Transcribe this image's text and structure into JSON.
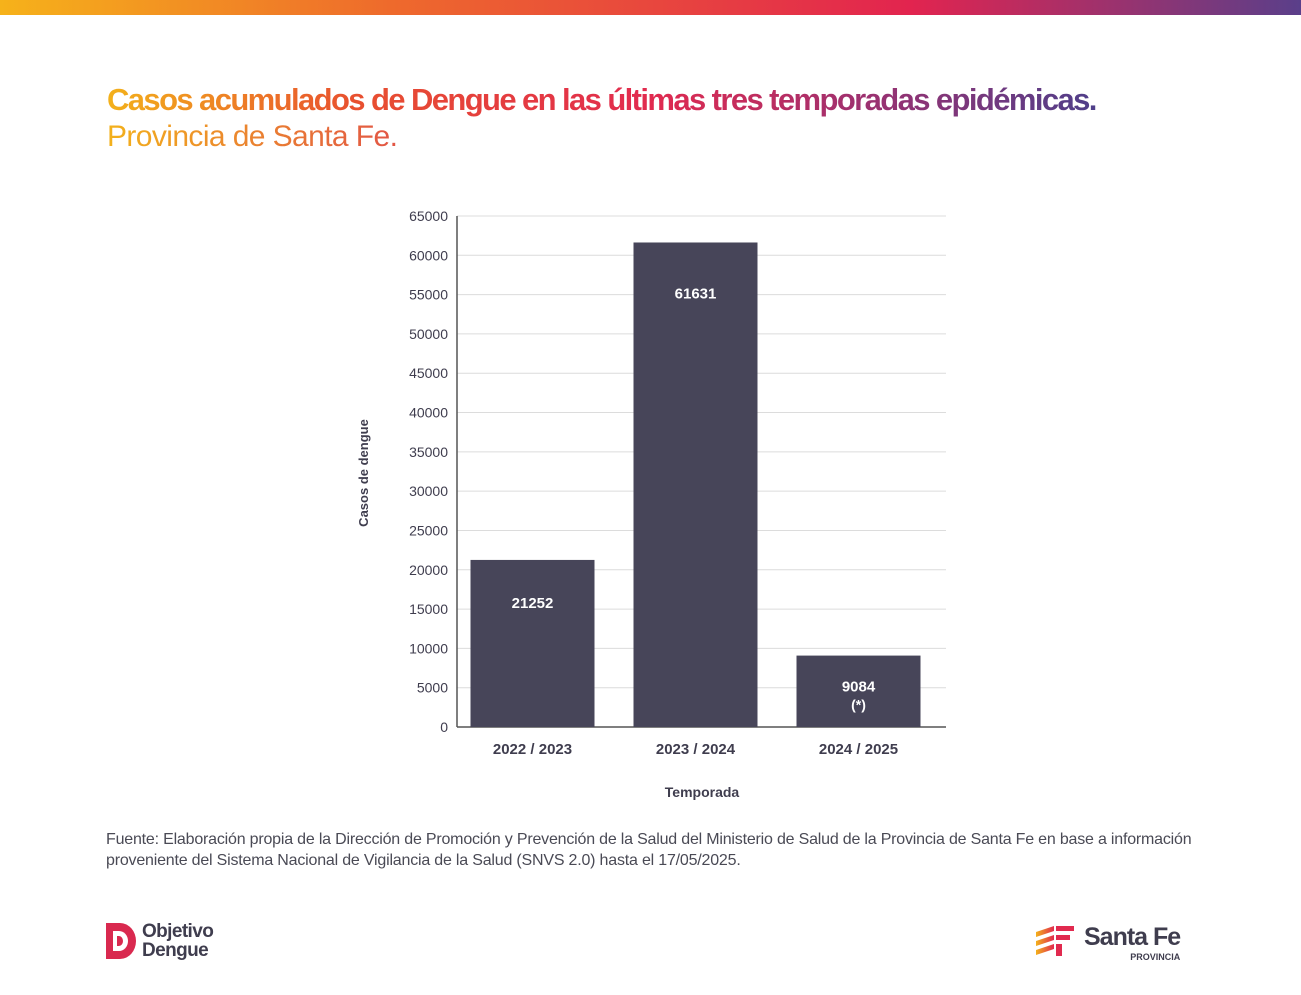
{
  "header": {
    "title": "Casos acumulados de Dengue en las últimas tres temporadas epidémicas.",
    "subtitle": "Provincia de Santa Fe."
  },
  "chart_data": {
    "type": "bar",
    "categories": [
      "2022 / 2023",
      "2023 / 2024",
      "2024 / 2025"
    ],
    "values": [
      21252,
      61631,
      9084
    ],
    "data_labels": [
      "21252",
      "61631",
      "9084"
    ],
    "annotations": [
      "",
      "",
      "(*)"
    ],
    "xlabel": "Temporada",
    "ylabel": "Casos de dengue",
    "ylim": [
      0,
      65000
    ],
    "yticks": [
      0,
      5000,
      10000,
      15000,
      20000,
      25000,
      30000,
      35000,
      40000,
      45000,
      50000,
      55000,
      60000,
      65000
    ],
    "grid": true,
    "bar_color": "#474559"
  },
  "footer": {
    "source": "Fuente: Elaboración propia de la Dirección de Promoción y Prevención de la Salud del Ministerio de Salud de la Provincia de Santa Fe en base a información proveniente del Sistema Nacional de Vigilancia de la Salud (SNVS 2.0) hasta el 17/05/2025.",
    "logo_left": [
      "Objetivo",
      "Dengue"
    ],
    "logo_right": {
      "name": "Santa Fe",
      "sub": "PROVINCIA"
    }
  }
}
